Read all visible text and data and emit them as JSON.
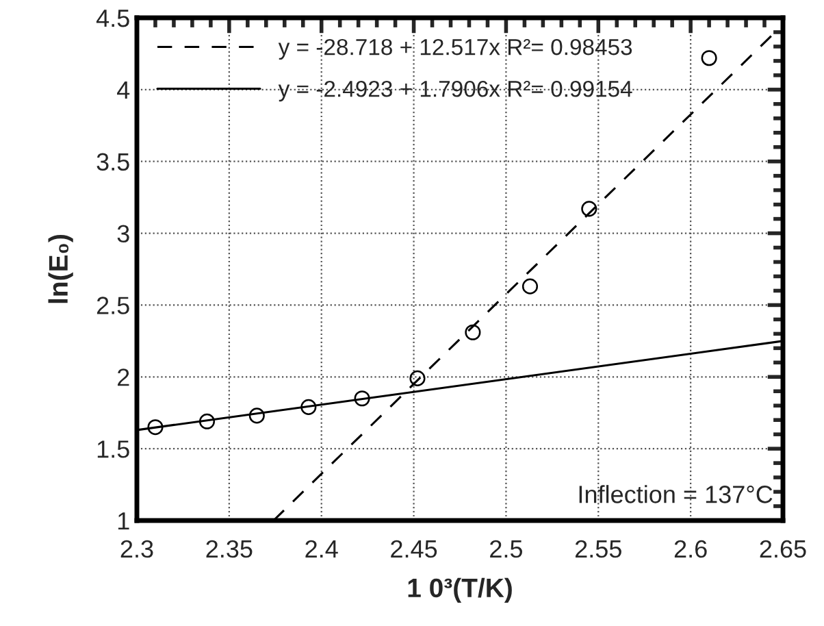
{
  "chart_data": {
    "type": "scatter",
    "xlabel": "1 0³(T/K)",
    "ylabel": "ln(E₀)",
    "xlim": [
      2.3,
      2.65
    ],
    "ylim": [
      1,
      4.5
    ],
    "xticks": [
      2.3,
      2.35,
      2.4,
      2.45,
      2.5,
      2.55,
      2.6,
      2.65
    ],
    "yticks": [
      1,
      1.5,
      2,
      2.5,
      3,
      3.5,
      4,
      4.5
    ],
    "grid": true,
    "legend": "top left",
    "series": [
      {
        "color": "#000000",
        "marker": "circle",
        "x": [
          2.31,
          2.338,
          2.365,
          2.393,
          2.422,
          2.452,
          2.482,
          2.513,
          2.545,
          2.61
        ],
        "values": [
          1.65,
          1.69,
          1.73,
          1.79,
          1.85,
          1.99,
          2.31,
          2.63,
          3.17,
          4.22
        ]
      },
      {
        "type": "line",
        "name": "y = -28.718 + 12.517x R²= 0.98453",
        "color": "#000000",
        "line_style": "dashed",
        "marker": "none",
        "x": [
          2.374,
          2.645
        ],
        "values": [
          1.0,
          4.39
        ]
      },
      {
        "type": "line",
        "name": "y = -2.4923 + 1.7906x R²= 0.99154",
        "color": "#000000",
        "line_style": "solid",
        "marker": "none",
        "x": [
          2.3,
          2.65
        ],
        "values": [
          1.63,
          2.25
        ]
      }
    ],
    "annotations": [
      "Inflection = 137°C"
    ]
  }
}
